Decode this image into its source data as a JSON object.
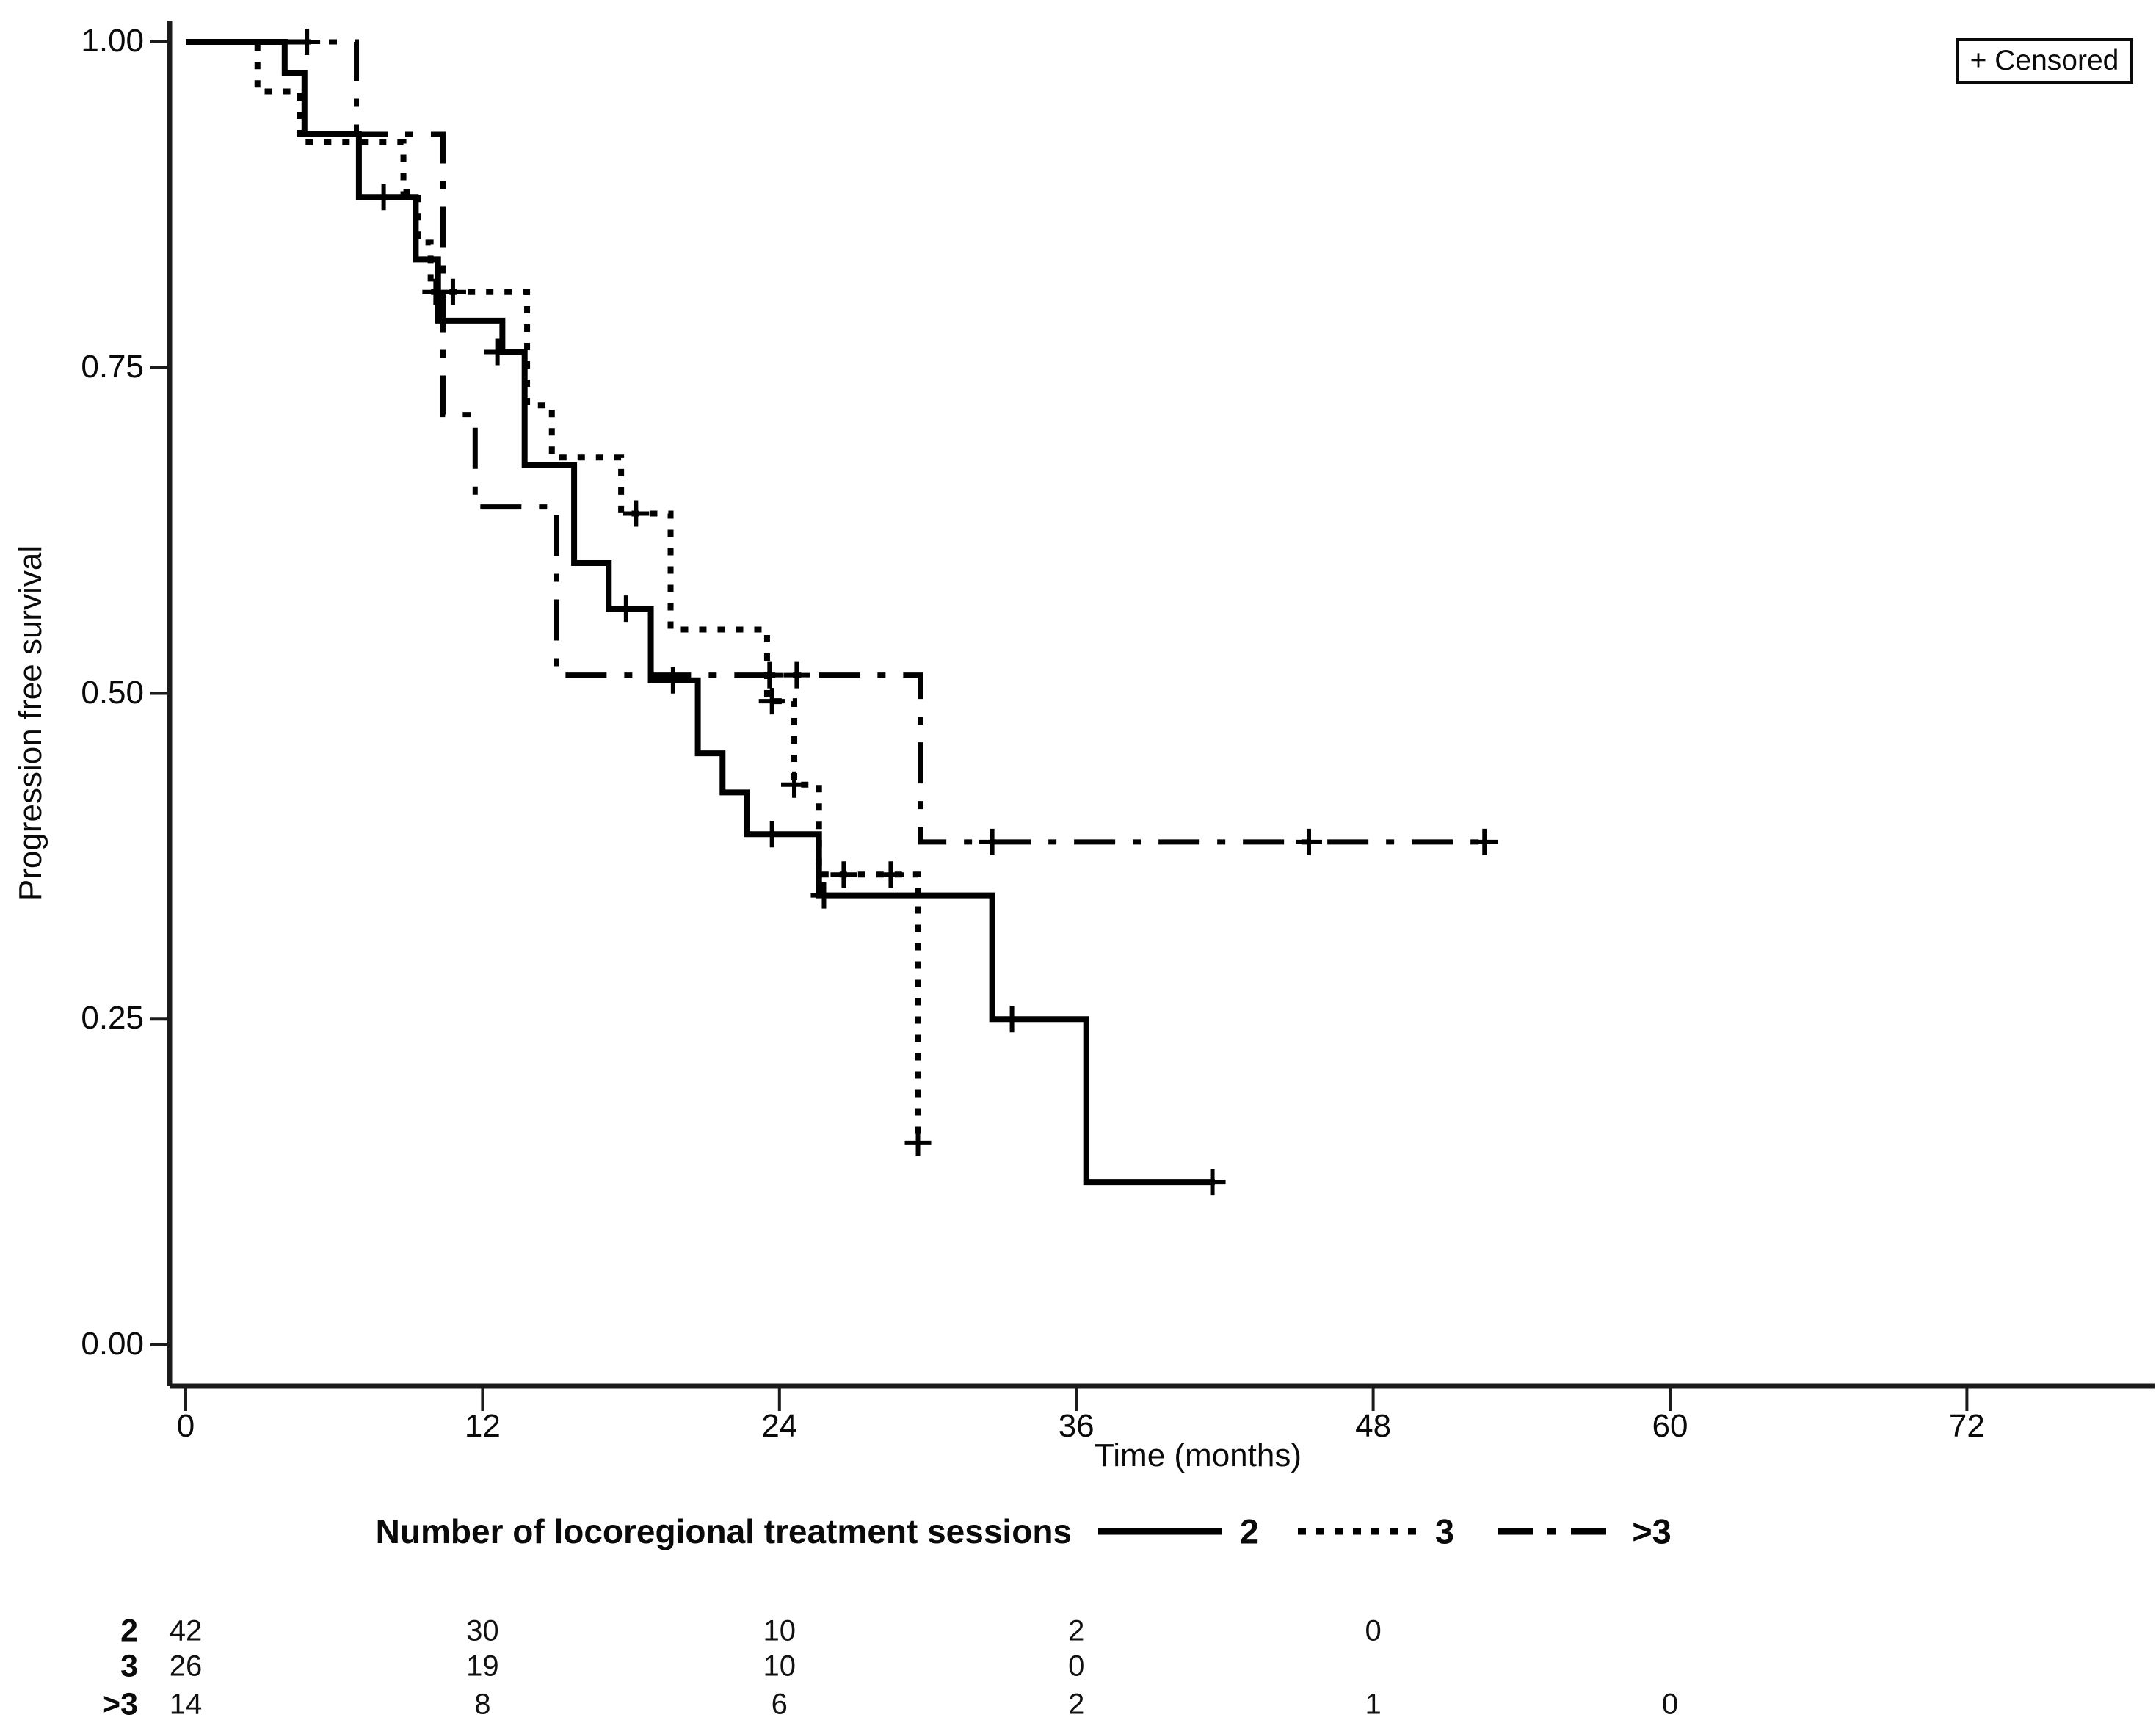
{
  "figure": {
    "kind": "Kaplan-Meier survival plot",
    "background": "#ffffff",
    "ink_color": "#000000",
    "axis_color": "#1b1b1b"
  },
  "chart_data": {
    "type": "line",
    "subtype": "kaplan-meier-step",
    "title": "",
    "xlabel": "Time (months)",
    "ylabel": "Progression free survival",
    "xlim": [
      0,
      79
    ],
    "ylim": [
      0,
      1
    ],
    "xticks": [
      0,
      12,
      24,
      36,
      48,
      60,
      72
    ],
    "ytick_labels": [
      "0.00",
      "0.25",
      "0.50",
      "0.75",
      "1.00"
    ],
    "grid": false,
    "censored_marker": {
      "glyph": "+",
      "legend_label": "+ Censored",
      "legend_position": "top-right"
    },
    "legend": {
      "title": "Number of locoregional treatment sessions",
      "position": "below-x-axis",
      "entries": [
        {
          "label": "2",
          "line_style": "solid"
        },
        {
          "label": "3",
          "line_style": "dotted"
        },
        {
          "label": ">3",
          "line_style": "dash-dot"
        }
      ]
    },
    "series": [
      {
        "name": "2",
        "line_style": "solid",
        "steps": [
          [
            0,
            1.0
          ],
          [
            4.0,
            0.976
          ],
          [
            4.8,
            0.929
          ],
          [
            7.0,
            0.881
          ],
          [
            9.3,
            0.833
          ],
          [
            10.2,
            0.786
          ],
          [
            12.8,
            0.762
          ],
          [
            13.7,
            0.675
          ],
          [
            15.7,
            0.6
          ],
          [
            17.1,
            0.565
          ],
          [
            18.8,
            0.51
          ],
          [
            20.7,
            0.454
          ],
          [
            21.7,
            0.424
          ],
          [
            22.7,
            0.392
          ],
          [
            25.6,
            0.345
          ],
          [
            32.6,
            0.25
          ],
          [
            36.4,
            0.125
          ]
        ],
        "end_time": 41.6,
        "censor_marks": [
          [
            8.0,
            0.881
          ],
          [
            12.6,
            0.762
          ],
          [
            17.8,
            0.565
          ],
          [
            19.7,
            0.51
          ],
          [
            23.7,
            0.392
          ],
          [
            25.8,
            0.345
          ],
          [
            33.4,
            0.25
          ],
          [
            41.5,
            0.125
          ]
        ]
      },
      {
        "name": "3",
        "line_style": "dotted",
        "steps": [
          [
            0,
            1.0
          ],
          [
            2.9,
            0.962
          ],
          [
            4.6,
            0.923
          ],
          [
            8.8,
            0.885
          ],
          [
            9.4,
            0.846
          ],
          [
            9.9,
            0.808
          ],
          [
            13.8,
            0.721
          ],
          [
            14.8,
            0.681
          ],
          [
            17.6,
            0.638
          ],
          [
            19.6,
            0.549
          ],
          [
            23.5,
            0.494
          ],
          [
            24.6,
            0.43
          ],
          [
            25.6,
            0.361
          ],
          [
            29.6,
            0.155
          ]
        ],
        "end_time": 29.6,
        "censor_marks": [
          [
            10.1,
            0.808
          ],
          [
            10.8,
            0.808
          ],
          [
            18.2,
            0.638
          ],
          [
            23.7,
            0.494
          ],
          [
            24.6,
            0.43
          ],
          [
            26.6,
            0.361
          ],
          [
            28.5,
            0.361
          ],
          [
            29.6,
            0.155
          ]
        ]
      },
      {
        "name": ">3",
        "line_style": "dash-dot",
        "steps": [
          [
            0,
            1.0
          ],
          [
            6.9,
            0.929
          ],
          [
            10.4,
            0.714
          ],
          [
            11.7,
            0.643
          ],
          [
            15.0,
            0.514
          ],
          [
            29.7,
            0.386
          ]
        ],
        "end_time": 52.6,
        "censor_marks": [
          [
            4.9,
            1.0
          ],
          [
            23.6,
            0.514
          ],
          [
            24.7,
            0.514
          ],
          [
            32.6,
            0.386
          ],
          [
            45.4,
            0.386
          ],
          [
            52.5,
            0.386
          ]
        ]
      }
    ],
    "risk_table": {
      "months": [
        0,
        12,
        24,
        36,
        48,
        60
      ],
      "rows": [
        {
          "label": "2",
          "counts": [
            42,
            30,
            10,
            2,
            0,
            null
          ]
        },
        {
          "label": "3",
          "counts": [
            26,
            19,
            10,
            0,
            null,
            null
          ]
        },
        {
          "label": ">3",
          "counts": [
            14,
            8,
            6,
            2,
            1,
            0
          ]
        }
      ]
    }
  }
}
